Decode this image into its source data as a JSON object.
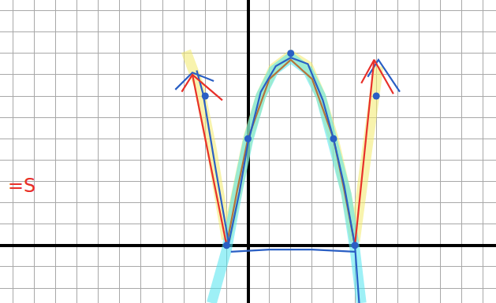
{
  "chart_data": {
    "type": "line",
    "grid": true,
    "tick_labels": false,
    "xlim": [
      -11.6,
      11.6
    ],
    "ylim": [
      -2.7,
      11.5
    ],
    "xticks": [
      -11,
      -10,
      -9,
      -8,
      -7,
      -6,
      -5,
      -4,
      -3,
      -2,
      -1,
      0,
      1,
      2,
      3,
      4,
      5,
      6,
      7,
      8,
      9,
      10,
      11
    ],
    "yticks": [
      -2,
      -1,
      0,
      1,
      2,
      3,
      4,
      5,
      6,
      7,
      8,
      9,
      10,
      11
    ],
    "annotations": [
      {
        "text": "=S",
        "x": -11.3,
        "y": 2.8,
        "color": "#e8302a"
      }
    ],
    "series": [
      {
        "type": "line",
        "line_style": "highlight",
        "color": "#f2ea6a",
        "x": [
          -2.9,
          -2.3,
          -1.7,
          -1,
          -0.5,
          0,
          0.6,
          1.2,
          2,
          2.8,
          3.4,
          4,
          4.6,
          5,
          5.4,
          5.8,
          6.1
        ],
        "values": [
          9.1,
          7.5,
          4.5,
          0.3,
          2.6,
          5,
          7,
          8.3,
          8.9,
          8.4,
          7,
          5,
          2.4,
          0.2,
          3.2,
          6.4,
          8.4
        ]
      },
      {
        "type": "line",
        "line_style": "highlight",
        "color": "#4fe3ef",
        "x": [
          -1.7,
          -1,
          -0.5,
          0,
          0.6,
          1.2,
          2,
          2.8,
          3.4,
          4,
          4.6,
          5,
          5.3
        ],
        "values": [
          -2.7,
          -0.2,
          2.5,
          4.9,
          7,
          8.2,
          8.8,
          8.2,
          7,
          4.9,
          2.4,
          -0.2,
          -2.7
        ]
      },
      {
        "type": "line",
        "line_style": "solid",
        "color": "#b5733a",
        "x": [
          -1,
          -0.5,
          0,
          1,
          2,
          3,
          4,
          4.5,
          5
        ],
        "values": [
          0,
          2.6,
          5,
          7.8,
          8.7,
          7.8,
          5,
          2.6,
          0
        ]
      },
      {
        "type": "line",
        "line_style": "solid",
        "color": "#2a5fc4",
        "x": [
          -2.4,
          -2.1,
          -1.5,
          -0.9,
          -0.4,
          0,
          0.6,
          1.3,
          2,
          2.8,
          3.5,
          4,
          4.5,
          5,
          5.2,
          null,
          -0.8,
          1,
          3,
          5,
          null,
          -3.4,
          -2.6,
          -1.6,
          null,
          5.6,
          6.1,
          7.1
        ],
        "values": [
          8.2,
          7.1,
          3.5,
          0.1,
          2.5,
          4.8,
          7.2,
          8.4,
          8.8,
          8.5,
          6.8,
          5,
          2.8,
          0,
          -2.7,
          null,
          -0.3,
          -0.2,
          -0.2,
          -0.3,
          null,
          7.3,
          8.1,
          7.7,
          null,
          7.9,
          8.7,
          7.2
        ]
      },
      {
        "type": "line",
        "line_style": "solid",
        "color": "#e8302a",
        "x": [
          -2.6,
          -1,
          null,
          5,
          5.9,
          null,
          -3.1,
          -2.6,
          -1.2,
          null,
          5.3,
          5.9,
          6.8
        ],
        "values": [
          8,
          0,
          null,
          0,
          8.7,
          null,
          7.2,
          8,
          6.8,
          null,
          7.6,
          8.7,
          7.1
        ]
      },
      {
        "type": "scatter",
        "marker": "circle",
        "color": "#2a5fc4",
        "x": [
          -1,
          0,
          2,
          4,
          5,
          -2,
          6
        ],
        "values": [
          0,
          5,
          9,
          5,
          0,
          7,
          7
        ]
      }
    ]
  }
}
